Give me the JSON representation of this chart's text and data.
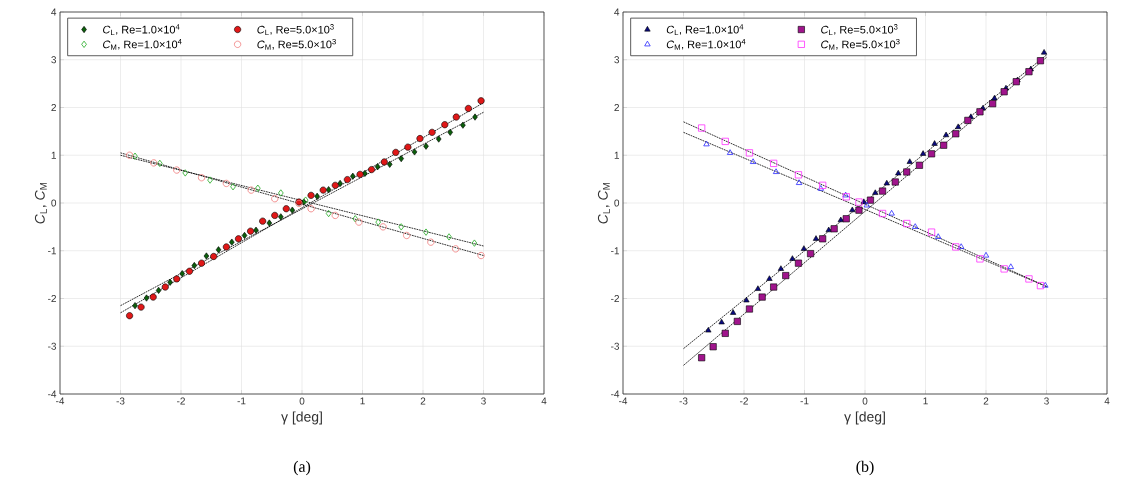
{
  "chart_data": [
    {
      "type": "scatter",
      "xlabel": "γ [deg]",
      "ylabel": "*C*$_{L}$,  *C*$_{M}$",
      "annotations": [
        "(a)"
      ],
      "xlim": [
        -4,
        4
      ],
      "ylim": [
        -4,
        4
      ],
      "xticks": [
        -4,
        -3,
        -2,
        -1,
        0,
        1,
        2,
        3,
        4
      ],
      "yticks": [
        -4,
        -3,
        -2,
        -1,
        0,
        1,
        2,
        3,
        4
      ],
      "grid": true,
      "legend": "top left",
      "series": [
        {
          "name": "*C*$_{L}$, Re=1.0×10$^{4}$",
          "color": "#0b5e0b",
          "marker": "diamond",
          "x": [
            -2.76,
            -2.57,
            -2.37,
            -2.18,
            -1.98,
            -1.78,
            -1.58,
            -1.38,
            -1.16,
            -0.95,
            -0.76,
            -0.54,
            -0.35,
            -0.16,
            0.03,
            0.25,
            0.44,
            0.63,
            0.84,
            1.04,
            1.25,
            1.45,
            1.64,
            1.86,
            2.05,
            2.26,
            2.45,
            2.66,
            2.86
          ],
          "values": [
            -2.15,
            -1.99,
            -1.83,
            -1.66,
            -1.48,
            -1.31,
            -1.11,
            -0.98,
            -0.82,
            -0.68,
            -0.57,
            -0.42,
            -0.29,
            -0.15,
            0.02,
            0.14,
            0.28,
            0.41,
            0.56,
            0.62,
            0.76,
            0.81,
            0.93,
            1.07,
            1.19,
            1.34,
            1.48,
            1.63,
            1.8
          ]
        },
        {
          "name": "*C*$_{L}$, Re=5.0×10$^{3}$",
          "color": "#e01818",
          "marker": "circle",
          "x": [
            -2.85,
            -2.66,
            -2.46,
            -2.26,
            -2.07,
            -1.86,
            -1.66,
            -1.46,
            -1.25,
            -1.05,
            -0.85,
            -0.65,
            -0.45,
            -0.26,
            -0.05,
            0.15,
            0.35,
            0.55,
            0.75,
            0.96,
            1.15,
            1.36,
            1.55,
            1.75,
            1.95,
            2.15,
            2.36,
            2.55,
            2.75,
            2.96
          ],
          "values": [
            -2.36,
            -2.18,
            -1.97,
            -1.76,
            -1.59,
            -1.43,
            -1.26,
            -1.12,
            -0.92,
            -0.75,
            -0.59,
            -0.38,
            -0.26,
            -0.12,
            0.02,
            0.16,
            0.27,
            0.37,
            0.49,
            0.6,
            0.7,
            0.86,
            1.06,
            1.17,
            1.35,
            1.48,
            1.64,
            1.8,
            1.98,
            2.14
          ]
        },
        {
          "name": "*C*$_{M}$, Re=1.0×10$^{4}$",
          "color": "#22aa22",
          "marker": "diamond",
          "x": [
            -2.76,
            -2.35,
            -1.93,
            -1.52,
            -1.14,
            -0.73,
            -0.35,
            0.06,
            0.44,
            0.88,
            1.26,
            1.64,
            2.05,
            2.43,
            2.85
          ],
          "values": [
            0.98,
            0.83,
            0.63,
            0.48,
            0.34,
            0.31,
            0.21,
            0.06,
            -0.22,
            -0.33,
            -0.4,
            -0.5,
            -0.61,
            -0.71,
            -0.84
          ]
        },
        {
          "name": "*C*$_{M}$, Re=5.0×10$^{3}$",
          "color": "#f07878",
          "marker": "circle",
          "x": [
            -2.85,
            -2.45,
            -2.07,
            -1.66,
            -1.25,
            -0.84,
            -0.45,
            -0.05,
            0.15,
            0.55,
            0.94,
            1.34,
            1.73,
            2.13,
            2.54,
            2.96
          ],
          "values": [
            1.0,
            0.84,
            0.69,
            0.53,
            0.41,
            0.27,
            0.09,
            -0.01,
            -0.12,
            -0.26,
            -0.4,
            -0.5,
            -0.68,
            -0.82,
            -0.96,
            -1.1
          ]
        },
        {
          "type": "line",
          "color": "#000000",
          "line_style": "dotted",
          "x": [
            -3,
            3
          ],
          "values": [
            -2.15,
            1.9
          ]
        },
        {
          "type": "line",
          "color": "#000000",
          "line_style": "dotted",
          "x": [
            -3,
            3
          ],
          "values": [
            -2.3,
            2.1
          ]
        },
        {
          "type": "line",
          "color": "#000000",
          "line_style": "dotted",
          "x": [
            -3,
            3
          ],
          "values": [
            1.0,
            -0.9
          ]
        },
        {
          "type": "line",
          "color": "#000000",
          "line_style": "dotted",
          "x": [
            -3,
            3
          ],
          "values": [
            1.05,
            -1.1
          ]
        }
      ]
    },
    {
      "type": "scatter",
      "xlabel": "γ [deg]",
      "ylabel": "*C*$_{L}$,  *C*$_{M}$",
      "annotations": [
        "(b)"
      ],
      "xlim": [
        -4,
        4
      ],
      "ylim": [
        -4,
        4
      ],
      "xticks": [
        -4,
        -3,
        -2,
        -1,
        0,
        1,
        2,
        3,
        4
      ],
      "yticks": [
        -4,
        -3,
        -2,
        -1,
        0,
        1,
        2,
        3,
        4
      ],
      "grid": true,
      "legend": "top left",
      "series": [
        {
          "name": "*C*$_{L}$, Re=1.0×10$^{4}$",
          "color": "#0a0a80",
          "marker": "triangle",
          "x": [
            -2.59,
            -2.37,
            -2.18,
            -1.96,
            -1.77,
            -1.58,
            -1.39,
            -1.2,
            -1.01,
            -0.81,
            -0.6,
            -0.4,
            -0.21,
            -0.02,
            0.17,
            0.36,
            0.55,
            0.74,
            0.96,
            1.15,
            1.34,
            1.54,
            1.75,
            1.95,
            2.14,
            2.33,
            2.52,
            2.74,
            2.96
          ],
          "values": [
            -2.67,
            -2.5,
            -2.3,
            -2.04,
            -1.8,
            -1.59,
            -1.38,
            -1.17,
            -0.96,
            -0.75,
            -0.57,
            -0.36,
            -0.15,
            0.02,
            0.21,
            0.41,
            0.62,
            0.86,
            1.03,
            1.24,
            1.42,
            1.59,
            1.8,
            1.98,
            2.19,
            2.4,
            2.57,
            2.8,
            3.15
          ]
        },
        {
          "name": "*C*$_{L}$, Re=5.0×10$^{3}$",
          "color": "#a0148c",
          "marker": "square",
          "x": [
            -2.7,
            -2.51,
            -2.31,
            -2.11,
            -1.91,
            -1.7,
            -1.51,
            -1.31,
            -1.1,
            -0.9,
            -0.7,
            -0.51,
            -0.31,
            -0.1,
            0.09,
            0.29,
            0.5,
            0.69,
            0.9,
            1.1,
            1.3,
            1.5,
            1.7,
            1.9,
            2.11,
            2.3,
            2.5,
            2.71,
            2.9
          ],
          "values": [
            -3.24,
            -3.01,
            -2.73,
            -2.48,
            -2.22,
            -1.97,
            -1.76,
            -1.52,
            -1.26,
            -1.06,
            -0.75,
            -0.54,
            -0.33,
            -0.15,
            0.06,
            0.25,
            0.44,
            0.65,
            0.79,
            1.03,
            1.21,
            1.45,
            1.73,
            1.91,
            2.08,
            2.33,
            2.54,
            2.75,
            2.98
          ]
        },
        {
          "name": "*C*$_{M}$, Re=1.0×10$^{4}$",
          "color": "#2a2aff",
          "marker": "triangle",
          "x": [
            -2.62,
            -2.23,
            -1.85,
            -1.47,
            -1.09,
            -0.73,
            -0.32,
            0.03,
            0.44,
            0.83,
            1.21,
            1.59,
            2.0,
            2.41,
            2.98
          ],
          "values": [
            1.23,
            1.05,
            0.86,
            0.65,
            0.42,
            0.3,
            0.16,
            -0.05,
            -0.22,
            -0.5,
            -0.71,
            -0.92,
            -1.1,
            -1.34,
            -1.73
          ]
        },
        {
          "name": "*C*$_{M}$, Re=5.0×10$^{3}$",
          "color": "#ff30ff",
          "marker": "square",
          "x": [
            -2.7,
            -2.31,
            -1.91,
            -1.51,
            -1.1,
            -0.7,
            -0.31,
            -0.1,
            0.29,
            0.69,
            1.1,
            1.5,
            1.9,
            2.3,
            2.71,
            2.9
          ],
          "values": [
            1.57,
            1.29,
            1.05,
            0.83,
            0.59,
            0.37,
            0.13,
            0.02,
            -0.22,
            -0.43,
            -0.61,
            -0.92,
            -1.17,
            -1.38,
            -1.59,
            -1.73
          ]
        },
        {
          "type": "line",
          "color": "#000000",
          "line_style": "dotted",
          "x": [
            -3,
            3
          ],
          "values": [
            -3.05,
            3.1
          ]
        },
        {
          "type": "line",
          "color": "#000000",
          "line_style": "dotted",
          "x": [
            -3,
            3
          ],
          "values": [
            -3.4,
            3.05
          ]
        },
        {
          "type": "line",
          "color": "#000000",
          "line_style": "dotted",
          "x": [
            -3,
            3
          ],
          "values": [
            1.7,
            -1.75
          ]
        },
        {
          "type": "line",
          "color": "#000000",
          "line_style": "dotted",
          "x": [
            -3,
            3
          ],
          "values": [
            1.48,
            -1.75
          ]
        }
      ]
    }
  ]
}
